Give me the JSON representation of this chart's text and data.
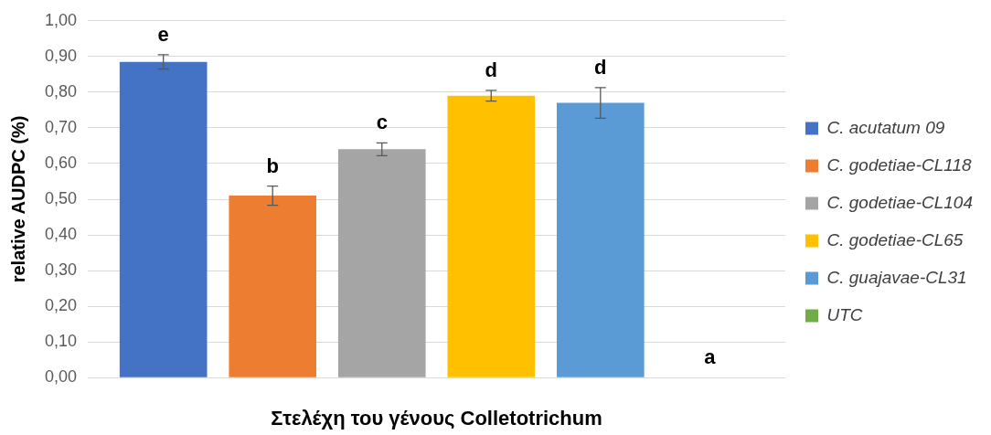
{
  "chart_data": {
    "type": "bar",
    "xlabel": "Στελέχη του γένους Colletotrichum",
    "ylabel": "relative AUDPC (%)",
    "categories": [
      null
    ],
    "series": [
      {
        "name": "C. acutatum 09",
        "color": "#4472c4",
        "values": [
          0.885
        ],
        "errors": [
          0.02
        ],
        "value_labels": [
          "e"
        ]
      },
      {
        "name": "C. godetiae-CL118",
        "color": "#ed7d31",
        "values": [
          0.51
        ],
        "errors": [
          0.027
        ],
        "value_labels": [
          "b"
        ]
      },
      {
        "name": "C. godetiae-CL104",
        "color": "#a5a5a5",
        "values": [
          0.64
        ],
        "errors": [
          0.018
        ],
        "value_labels": [
          "c"
        ]
      },
      {
        "name": "C. godetiae-CL65",
        "color": "#ffc000",
        "values": [
          0.79
        ],
        "errors": [
          0.015
        ],
        "value_labels": [
          "d"
        ]
      },
      {
        "name": "C. guajavae-CL31",
        "color": "#5b9bd5",
        "values": [
          0.77
        ],
        "errors": [
          0.043
        ],
        "value_labels": [
          "d"
        ]
      },
      {
        "name": "UTC",
        "color": "#70ad47",
        "values": [
          0
        ]
      }
    ],
    "annotations": [
      "a"
    ],
    "ylim": [
      0,
      1
    ],
    "yticks": [
      {
        "value": 0,
        "label": "0,00"
      },
      {
        "value": 0.1,
        "label": "0,10"
      },
      {
        "value": 0.2,
        "label": "0,20"
      },
      {
        "value": 0.3,
        "label": "0,30"
      },
      {
        "value": 0.4,
        "label": "0,40"
      },
      {
        "value": 0.5,
        "label": "0,50"
      },
      {
        "value": 0.6,
        "label": "0,60"
      },
      {
        "value": 0.7,
        "label": "0,70"
      },
      {
        "value": 0.8,
        "label": "0,80"
      },
      {
        "value": 0.9,
        "label": "0,90"
      },
      {
        "value": 1,
        "label": "1,00"
      }
    ],
    "grid": "y",
    "legend": "right"
  }
}
